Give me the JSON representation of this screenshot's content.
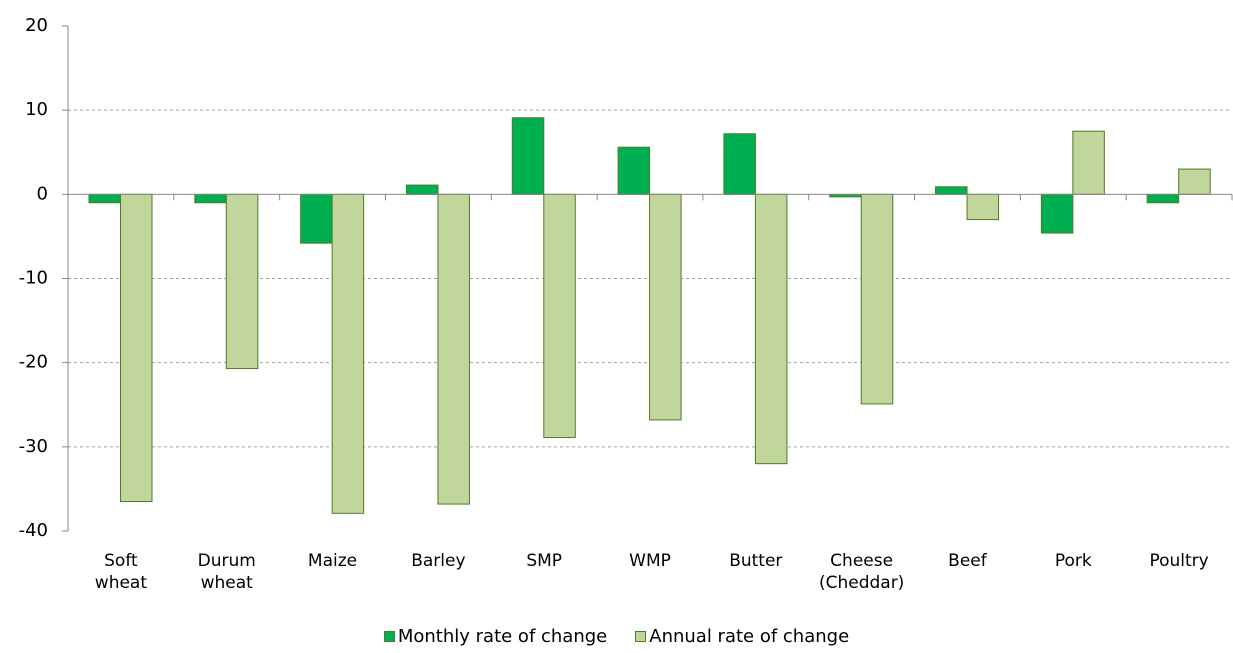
{
  "chart_data": {
    "type": "bar",
    "categories": [
      "Soft wheat",
      "Durum wheat",
      "Maize",
      "Barley",
      "SMP",
      "WMP",
      "Butter",
      "Cheese (Cheddar)",
      "Beef",
      "Pork",
      "Poultry"
    ],
    "series": [
      {
        "name": "Monthly rate of change",
        "color": "#00b050",
        "values": [
          -1,
          -1,
          -5.8,
          1.1,
          9.1,
          5.6,
          7.2,
          -0.3,
          0.9,
          -4.6,
          -1
        ]
      },
      {
        "name": "Annual rate of change",
        "color": "#c0d69a",
        "values": [
          -36.5,
          -20.7,
          -37.9,
          -36.8,
          -28.9,
          -26.8,
          -32,
          -24.9,
          -3,
          7.5,
          3
        ]
      }
    ],
    "ylim": [
      -40,
      20
    ],
    "yticks": [
      -40,
      -30,
      -20,
      -10,
      0,
      10,
      20
    ],
    "grid": true
  }
}
